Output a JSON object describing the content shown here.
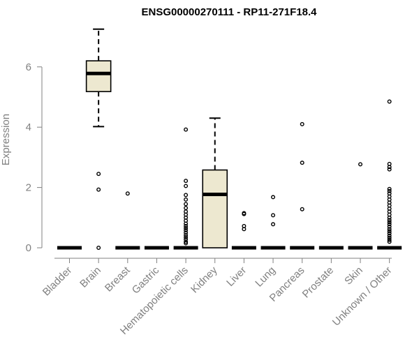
{
  "chart_data": {
    "type": "boxplot",
    "title": "ENSG00000270111 - RP11-271F18.4",
    "xlabel": "",
    "ylabel": "Expression",
    "ylim": [
      0,
      7.3
    ],
    "yticks": [
      0,
      2,
      4,
      6
    ],
    "box_fill": "#EDE8D0",
    "categories": [
      "Bladder",
      "Brain",
      "Breast",
      "Gastric",
      "Hematopoietic cells",
      "Kidney",
      "Liver",
      "Lung",
      "Pancreas",
      "Prostate",
      "Skin",
      "Unknown / Other"
    ],
    "boxes": [
      {
        "name": "Bladder",
        "min": 0,
        "q1": 0,
        "median": 0,
        "q3": 0,
        "max": 0,
        "outliers": []
      },
      {
        "name": "Brain",
        "min": 4.02,
        "q1": 5.18,
        "median": 5.78,
        "q3": 6.2,
        "max": 7.25,
        "outliers": [
          2.45,
          1.93,
          0.0
        ]
      },
      {
        "name": "Breast",
        "min": 0,
        "q1": 0,
        "median": 0,
        "q3": 0,
        "max": 0,
        "outliers": [
          1.8
        ]
      },
      {
        "name": "Gastric",
        "min": 0,
        "q1": 0,
        "median": 0,
        "q3": 0,
        "max": 0,
        "outliers": []
      },
      {
        "name": "Hematopoietic cells",
        "min": 0,
        "q1": 0,
        "median": 0,
        "q3": 0,
        "max": 0,
        "outliers": [
          3.92,
          2.22,
          2.05,
          1.75,
          1.6,
          1.45,
          1.32,
          1.2,
          1.1,
          1.0,
          0.9,
          0.8,
          0.72,
          0.65,
          0.58,
          0.5,
          0.42,
          0.35,
          0.28,
          0.2,
          0.15
        ]
      },
      {
        "name": "Kidney",
        "min": 0,
        "q1": 0,
        "median": 1.77,
        "q3": 2.58,
        "max": 4.3,
        "outliers": []
      },
      {
        "name": "Liver",
        "min": 0,
        "q1": 0,
        "median": 0,
        "q3": 0,
        "max": 0,
        "outliers": [
          1.15,
          1.12,
          0.72,
          0.62
        ]
      },
      {
        "name": "Lung",
        "min": 0,
        "q1": 0,
        "median": 0,
        "q3": 0,
        "max": 0,
        "outliers": [
          1.68,
          1.08,
          0.78
        ]
      },
      {
        "name": "Pancreas",
        "min": 0,
        "q1": 0,
        "median": 0,
        "q3": 0,
        "max": 0,
        "outliers": [
          4.1,
          2.82,
          1.28
        ]
      },
      {
        "name": "Prostate",
        "min": 0,
        "q1": 0,
        "median": 0,
        "q3": 0,
        "max": 0,
        "outliers": []
      },
      {
        "name": "Skin",
        "min": 0,
        "q1": 0,
        "median": 0,
        "q3": 0,
        "max": 0,
        "outliers": [
          2.77
        ]
      },
      {
        "name": "Unknown / Other",
        "min": 0,
        "q1": 0,
        "median": 0,
        "q3": 0,
        "max": 0,
        "outliers": [
          4.85,
          2.78,
          2.68,
          2.6,
          1.95,
          1.88,
          1.8,
          1.7,
          1.6,
          1.5,
          1.4,
          1.3,
          1.2,
          1.1,
          1.0,
          0.92,
          0.85,
          0.78,
          0.7,
          0.62,
          0.55,
          0.48,
          0.4,
          0.33,
          0.26,
          0.2
        ]
      }
    ]
  }
}
